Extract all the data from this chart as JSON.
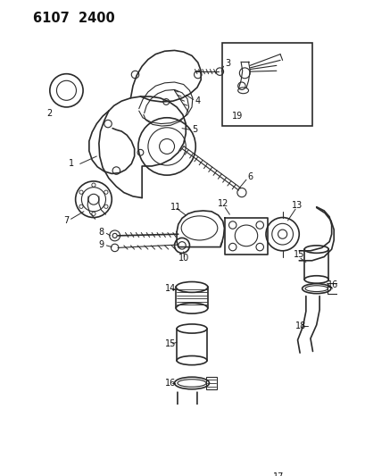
{
  "title": "6107  2400",
  "bg_color": "#ffffff",
  "line_color": "#2a2a2a",
  "label_color": "#111111",
  "label_fontsize": 7.0,
  "title_fontsize": 10.5,
  "fig_width": 4.1,
  "fig_height": 5.33,
  "dpi": 100
}
